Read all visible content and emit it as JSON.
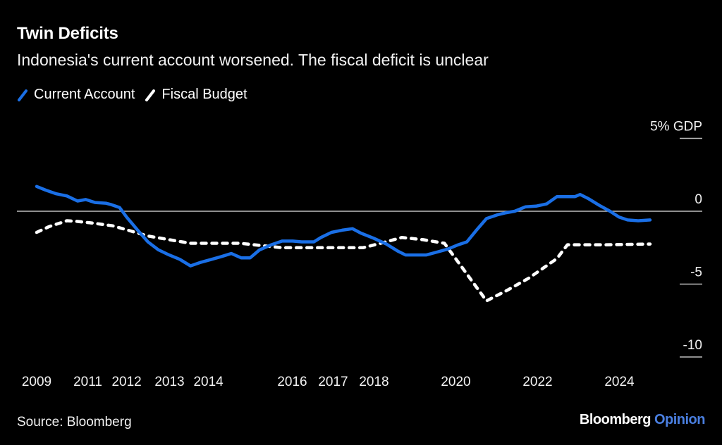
{
  "header": {
    "title": "Twin Deficits",
    "subtitle": "Indonesia's current account worsened. The fiscal deficit is unclear"
  },
  "legend": [
    {
      "label": "Current Account",
      "color": "#1a6fe6",
      "style": "solid"
    },
    {
      "label": "Fiscal Budget",
      "color": "#ffffff",
      "style": "dashed"
    }
  ],
  "footer": {
    "source": "Source: Bloomberg",
    "brand_main": "Bloomberg",
    "brand_accent": "Opinion",
    "brand_accent_color": "#4a7fe0"
  },
  "chart_data": {
    "type": "line",
    "title": "Twin Deficits",
    "subtitle": "Indonesia's current account worsened. The fiscal deficit is unclear",
    "xlabel": "",
    "ylabel": "% GDP",
    "ylim": [
      -10,
      5
    ],
    "xlim": [
      2009,
      2025
    ],
    "yticks": [
      {
        "value": 5,
        "label": "5% GDP"
      },
      {
        "value": 0,
        "label": "0"
      },
      {
        "value": -5,
        "label": "-5"
      },
      {
        "value": -10,
        "label": "-10"
      }
    ],
    "xticks": [
      {
        "value": 2009,
        "label": "2009"
      },
      {
        "value": 2010.25,
        "label": "2011"
      },
      {
        "value": 2011.2,
        "label": "2012"
      },
      {
        "value": 2012.25,
        "label": "2013"
      },
      {
        "value": 2013.2,
        "label": "2014"
      },
      {
        "value": 2015.25,
        "label": "2016"
      },
      {
        "value": 2016.25,
        "label": "2017"
      },
      {
        "value": 2017.25,
        "label": "2018"
      },
      {
        "value": 2019.25,
        "label": "2020"
      },
      {
        "value": 2021.25,
        "label": "2022"
      },
      {
        "value": 2023.25,
        "label": "2024"
      }
    ],
    "grid": "zero-line and right-side tick marks",
    "legend_position": "top-left",
    "series": [
      {
        "name": "Current Account",
        "color": "#1a6fe6",
        "style": "solid",
        "points": [
          [
            2009.0,
            1.7
          ],
          [
            2009.22,
            1.45
          ],
          [
            2009.48,
            1.2
          ],
          [
            2009.74,
            1.05
          ],
          [
            2010.0,
            0.7
          ],
          [
            2010.2,
            0.8
          ],
          [
            2010.43,
            0.6
          ],
          [
            2010.69,
            0.55
          ],
          [
            2010.83,
            0.45
          ],
          [
            2011.03,
            0.25
          ],
          [
            2011.2,
            -0.4
          ],
          [
            2011.47,
            -1.3
          ],
          [
            2011.72,
            -2.1
          ],
          [
            2011.98,
            -2.65
          ],
          [
            2012.24,
            -3.0
          ],
          [
            2012.5,
            -3.3
          ],
          [
            2012.76,
            -3.75
          ],
          [
            2013.02,
            -3.5
          ],
          [
            2013.28,
            -3.3
          ],
          [
            2013.53,
            -3.1
          ],
          [
            2013.76,
            -2.9
          ],
          [
            2014.0,
            -3.2
          ],
          [
            2014.22,
            -3.2
          ],
          [
            2014.45,
            -2.65
          ],
          [
            2014.74,
            -2.3
          ],
          [
            2015.0,
            -2.05
          ],
          [
            2015.26,
            -2.05
          ],
          [
            2015.48,
            -2.1
          ],
          [
            2015.78,
            -2.1
          ],
          [
            2015.95,
            -1.8
          ],
          [
            2016.21,
            -1.45
          ],
          [
            2016.47,
            -1.3
          ],
          [
            2016.72,
            -1.2
          ],
          [
            2016.93,
            -1.5
          ],
          [
            2017.24,
            -1.85
          ],
          [
            2017.55,
            -2.25
          ],
          [
            2017.84,
            -2.75
          ],
          [
            2018.02,
            -3.0
          ],
          [
            2018.28,
            -3.0
          ],
          [
            2018.53,
            -3.0
          ],
          [
            2018.79,
            -2.8
          ],
          [
            2019.05,
            -2.6
          ],
          [
            2019.31,
            -2.3
          ],
          [
            2019.52,
            -2.1
          ],
          [
            2019.74,
            -1.35
          ],
          [
            2020.0,
            -0.5
          ],
          [
            2020.26,
            -0.25
          ],
          [
            2020.48,
            -0.1
          ],
          [
            2020.69,
            0.0
          ],
          [
            2020.95,
            0.3
          ],
          [
            2021.21,
            0.35
          ],
          [
            2021.47,
            0.5
          ],
          [
            2021.72,
            1.0
          ],
          [
            2021.9,
            1.0
          ],
          [
            2022.16,
            1.0
          ],
          [
            2022.29,
            1.15
          ],
          [
            2022.5,
            0.85
          ],
          [
            2022.76,
            0.4
          ],
          [
            2023.02,
            0.0
          ],
          [
            2023.24,
            -0.4
          ],
          [
            2023.45,
            -0.6
          ],
          [
            2023.71,
            -0.65
          ],
          [
            2024.0,
            -0.6
          ]
        ]
      },
      {
        "name": "Fiscal Budget",
        "color": "#ffffff",
        "style": "dashed",
        "points": [
          [
            2009.0,
            -1.45
          ],
          [
            2009.31,
            -1.05
          ],
          [
            2009.74,
            -0.65
          ],
          [
            2010.0,
            -0.7
          ],
          [
            2010.34,
            -0.8
          ],
          [
            2010.86,
            -1.0
          ],
          [
            2011.29,
            -1.35
          ],
          [
            2011.72,
            -1.7
          ],
          [
            2012.24,
            -1.95
          ],
          [
            2012.76,
            -2.2
          ],
          [
            2013.28,
            -2.2
          ],
          [
            2013.97,
            -2.2
          ],
          [
            2014.31,
            -2.3
          ],
          [
            2015.0,
            -2.5
          ],
          [
            2015.69,
            -2.5
          ],
          [
            2016.38,
            -2.5
          ],
          [
            2016.98,
            -2.5
          ],
          [
            2017.41,
            -2.2
          ],
          [
            2017.93,
            -1.8
          ],
          [
            2018.45,
            -1.95
          ],
          [
            2018.97,
            -2.2
          ],
          [
            2020.0,
            -6.15
          ],
          [
            2020.52,
            -5.4
          ],
          [
            2021.03,
            -4.6
          ],
          [
            2021.72,
            -3.25
          ],
          [
            2021.98,
            -2.3
          ],
          [
            2022.93,
            -2.3
          ],
          [
            2024.0,
            -2.25
          ]
        ]
      }
    ]
  }
}
